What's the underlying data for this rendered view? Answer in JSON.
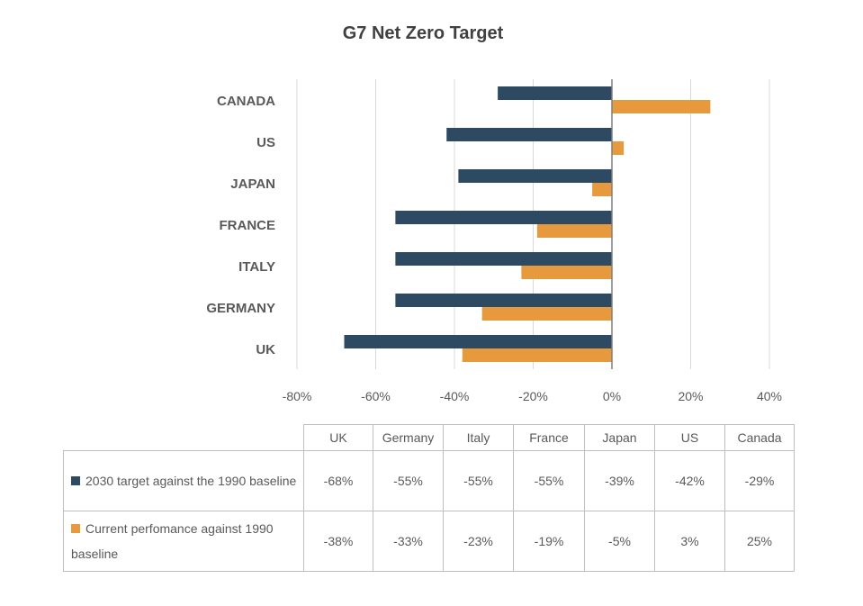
{
  "chart_data": {
    "type": "bar",
    "orientation": "horizontal",
    "title": "G7 Net Zero Target",
    "categories": [
      "CANADA",
      "US",
      "JAPAN",
      "FRANCE",
      "ITALY",
      "GERMANY",
      "UK"
    ],
    "series": [
      {
        "name": "2030 target against the 1990 baseline",
        "color": "#2e4a62",
        "values": [
          -29,
          -42,
          -39,
          -55,
          -55,
          -55,
          -68
        ]
      },
      {
        "name": "Current perfomance against 1990 baseline",
        "color": "#e69a3d",
        "values": [
          25,
          3,
          -5,
          -19,
          -23,
          -33,
          -38
        ]
      }
    ],
    "xlim": [
      -80,
      40
    ],
    "xticks": [
      "-80%",
      "-60%",
      "-40%",
      "-20%",
      "0%",
      "20%",
      "40%"
    ],
    "grid": true
  },
  "table": {
    "columns": [
      "UK",
      "Germany",
      "Italy",
      "France",
      "Japan",
      "US",
      "Canada"
    ],
    "rows": [
      {
        "label": "2030 target against the 1990 baseline",
        "color": "#2e4a62",
        "cells": [
          "-68%",
          "-55%",
          "-55%",
          "-55%",
          "-39%",
          "-42%",
          "-29%"
        ]
      },
      {
        "label": "Current perfomance against 1990 baseline",
        "color": "#e69a3d",
        "cells": [
          "-38%",
          "-33%",
          "-23%",
          "-19%",
          "-5%",
          "3%",
          "25%"
        ]
      }
    ]
  }
}
